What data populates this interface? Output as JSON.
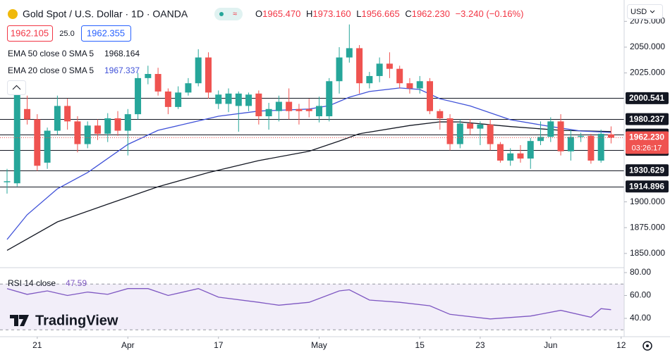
{
  "header": {
    "title": "Gold Spot / U.S. Dollar · 1D · OANDA",
    "ohlc": [
      {
        "label": "O",
        "value": "1965.470"
      },
      {
        "label": "H",
        "value": "1973.160"
      },
      {
        "label": "L",
        "value": "1956.665"
      },
      {
        "label": "C",
        "value": "1962.230"
      }
    ],
    "change": "−3.240 (−0.16%)",
    "bid": "1962.105",
    "spread": "25.0",
    "ask": "1962.355",
    "currency": "USD"
  },
  "legends": [
    {
      "name": "EMA 50 close 0 SMA 5",
      "value": "1968.164"
    },
    {
      "name": "EMA 20 close 0 SMA 5",
      "value": "1967.337"
    }
  ],
  "chart_data": {
    "type": "candlestick",
    "open": [
      1919,
      1918,
      1990,
      1980,
      1938,
      1969,
      1993,
      1978,
      1956,
      1974,
      1966,
      1981,
      1969,
      1985,
      2020,
      2024,
      2007,
      1992,
      2006,
      2015,
      2040,
      1995,
      1995,
      1993,
      1993,
      2005,
      1983,
      1988,
      1997,
      1990,
      1990,
      1983,
      1983,
      2017,
      2040,
      2049,
      2015,
      2022,
      2034,
      2029,
      2015,
      2010,
      2017,
      1988,
      1981,
      1956,
      1976,
      1971,
      1975,
      1956,
      1940,
      1947,
      1942,
      1959,
      1963,
      1978,
      1949,
      1963,
      1964,
      1940,
      1965.47
    ],
    "high": [
      1932,
      2010,
      2003,
      1985,
      1972,
      2003,
      2000,
      1983,
      1978,
      1980,
      1986,
      1988,
      1990,
      2025,
      2032,
      2030,
      2010,
      2012,
      2020,
      2048,
      2045,
      2008,
      2010,
      2007,
      2006,
      2008,
      1996,
      2003,
      2010,
      1995,
      2000,
      2002,
      2020,
      2050,
      2072,
      2052,
      2026,
      2040,
      2045,
      2032,
      2020,
      2022,
      2020,
      1990,
      1985,
      1980,
      1980,
      1978,
      1980,
      1958,
      1952,
      1955,
      1962,
      1978,
      1982,
      1985,
      1970,
      1967,
      1966,
      1970,
      1973.16
    ],
    "low": [
      1908,
      1915,
      1975,
      1930,
      1932,
      1965,
      1970,
      1948,
      1952,
      1960,
      1958,
      1964,
      1945,
      1980,
      2014,
      2003,
      1985,
      1990,
      2003,
      2012,
      2000,
      1990,
      1987,
      1968,
      1988,
      1975,
      1970,
      1978,
      1980,
      1975,
      1982,
      1977,
      1978,
      2005,
      2035,
      2005,
      2010,
      2016,
      2020,
      2010,
      2005,
      2005,
      1985,
      1970,
      1950,
      1952,
      1965,
      1955,
      1950,
      1938,
      1935,
      1938,
      1932,
      1955,
      1958,
      1945,
      1940,
      1958,
      1937,
      1938,
      1956.665
    ],
    "close": [
      1920,
      2008,
      1980,
      1935,
      1969,
      1993,
      1978,
      1956,
      1974,
      1966,
      1981,
      1969,
      1985,
      2020,
      2024,
      2007,
      1992,
      2006,
      2015,
      2040,
      2006,
      2004,
      2005,
      2005,
      2004,
      1983,
      1990,
      1997,
      1988,
      1988,
      1988,
      1993,
      2017,
      2040,
      2049,
      2015,
      2022,
      2034,
      2029,
      2015,
      2010,
      2017,
      1988,
      1981,
      1956,
      1976,
      1971,
      1975,
      1956,
      1940,
      1947,
      1942,
      1959,
      1963,
      1978,
      1949,
      1963,
      1964,
      1940,
      1966,
      1962.23
    ],
    "up_color": "#26a69a",
    "down_color": "#ef5350",
    "lines": [
      {
        "name": "EMA 50",
        "color": "#131722",
        "x": [
          0,
          5,
          10,
          15,
          20,
          25,
          30,
          33,
          35,
          40,
          43,
          45,
          50,
          55,
          60
        ],
        "values": [
          1853,
          1880.6,
          1897.7,
          1914.7,
          1928.4,
          1940,
          1949,
          1959,
          1966,
          1974,
          1977.6,
          1977.5,
          1973,
          1969.4,
          1968.164
        ]
      },
      {
        "name": "EMA 20",
        "color": "#3f51d8",
        "x": [
          0,
          2,
          5,
          8,
          12,
          15,
          18,
          21,
          25,
          30,
          32,
          34,
          36,
          39,
          41,
          43,
          46,
          50,
          54,
          57,
          60
        ],
        "values": [
          1863.5,
          1887.5,
          1912.7,
          1928.4,
          1955.7,
          1969.4,
          1976.2,
          1983,
          1988,
          1990,
          1993.3,
          2001.5,
          2007,
          2010.4,
          2009,
          2000,
          1993,
          1979.6,
          1973,
          1968.7,
          1967.337
        ]
      }
    ],
    "levels": [
      2000.541,
      1980.237,
      1965.164,
      1950.529,
      1930.629,
      1914.896
    ],
    "last_price": {
      "value": 1962.23,
      "label": "1962.230"
    },
    "countdown": "03:26:17",
    "xlim": [
      -0.7,
      61.3
    ],
    "ylim": [
      1836.2,
      2092.3
    ],
    "xticks": [
      {
        "value": 3,
        "label": "21"
      },
      {
        "value": 12,
        "label": "Apr"
      },
      {
        "value": 21,
        "label": "17"
      },
      {
        "value": 31,
        "label": "May"
      },
      {
        "value": 41,
        "label": "15"
      },
      {
        "value": 47,
        "label": "23"
      },
      {
        "value": 54,
        "label": "Jun"
      },
      {
        "value": 61,
        "label": "12"
      }
    ],
    "yticks": [
      {
        "value": 2075,
        "label": "2075.000"
      },
      {
        "value": 2050,
        "label": "2050.000"
      },
      {
        "value": 2025,
        "label": "2025.000"
      },
      {
        "value": 1900,
        "label": "1900.000"
      },
      {
        "value": 1875,
        "label": "1875.000"
      },
      {
        "value": 1850,
        "label": "1850.000"
      }
    ]
  },
  "rsi": {
    "name": "RSI 14 close",
    "value_label": "47.59",
    "color": "#7e57c2",
    "x": [
      0,
      2,
      4,
      6,
      8,
      10,
      12,
      14,
      16,
      19,
      21,
      25,
      27,
      30,
      33,
      34,
      36,
      39,
      42,
      44,
      48,
      52,
      55,
      58,
      59,
      60
    ],
    "values": [
      66,
      61,
      64,
      60,
      63,
      61,
      66,
      66,
      60,
      66,
      58.5,
      54,
      51.5,
      54,
      64,
      65,
      56,
      54,
      51,
      43.5,
      39.5,
      42,
      47,
      41,
      48.5,
      47.59
    ],
    "band": [
      70,
      30
    ],
    "ylim": [
      24,
      84.3
    ],
    "yticks": [
      {
        "value": 80,
        "label": "80.00"
      },
      {
        "value": 60,
        "label": "60.00"
      },
      {
        "value": 40,
        "label": "40.00"
      }
    ]
  },
  "branding": "TradingView"
}
